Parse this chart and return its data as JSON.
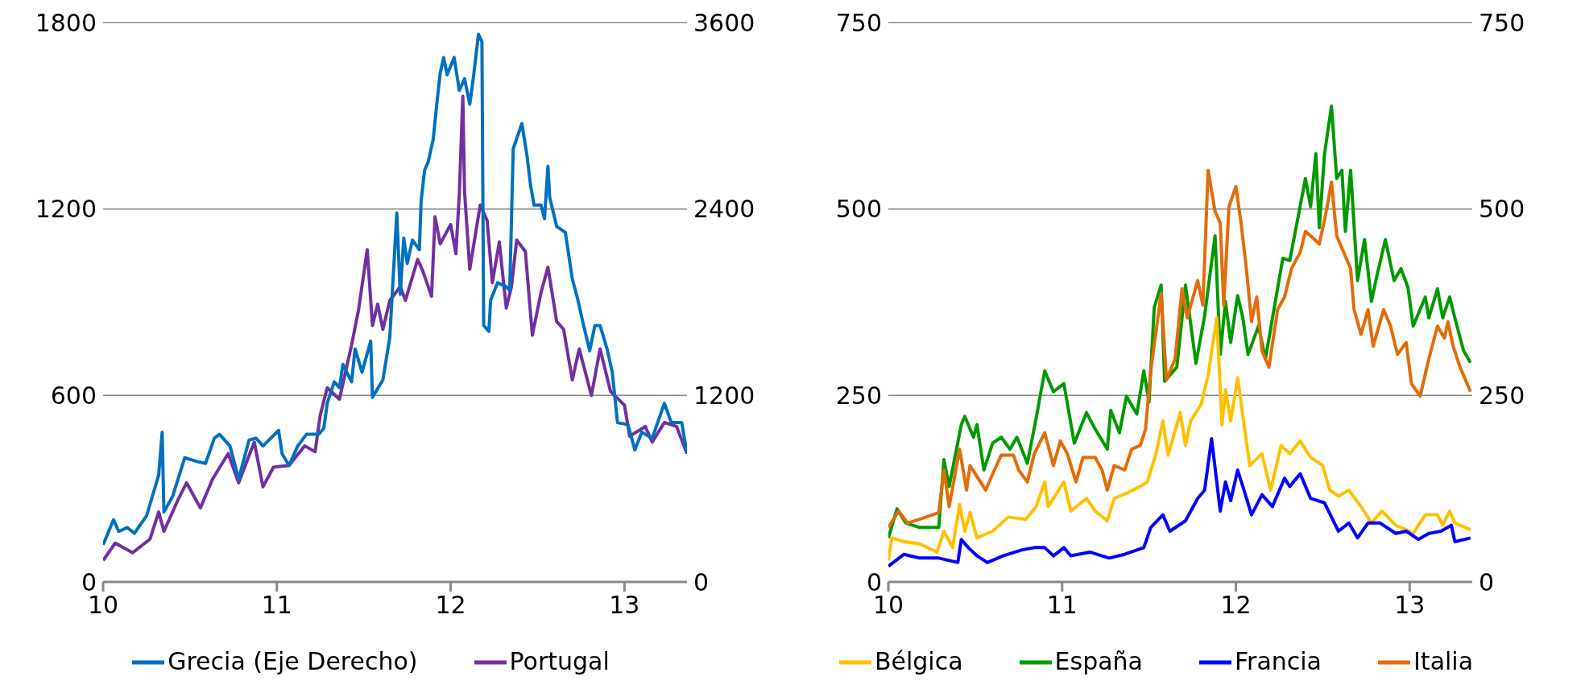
{
  "chart_data": [
    {
      "type": "line",
      "xlim": [
        10,
        13.36
      ],
      "xticks": [
        10,
        11,
        12,
        13
      ],
      "ylim": [
        0,
        1800
      ],
      "yticks": [
        0,
        600,
        1200,
        1800
      ],
      "y2lim": [
        0,
        3600
      ],
      "y2ticks": [
        0,
        1200,
        2400,
        3600
      ],
      "grid": "y",
      "legend": "bottom",
      "series": [
        {
          "name": "Portugal",
          "color": "#7030a0",
          "x": [
            10.0,
            10.07,
            10.17,
            10.27,
            10.32,
            10.35,
            10.43,
            10.48,
            10.56,
            10.63,
            10.72,
            10.78,
            10.87,
            10.92,
            10.98,
            11.07,
            11.16,
            11.22,
            11.25,
            11.29,
            11.36,
            11.43,
            11.47,
            11.52,
            11.55,
            11.58,
            11.61,
            11.65,
            11.71,
            11.74,
            11.81,
            11.84,
            11.89,
            11.91,
            11.94,
            12.0,
            12.03,
            12.05,
            12.07,
            12.08,
            12.11,
            12.17,
            12.21,
            12.24,
            12.28,
            12.32,
            12.35,
            12.38,
            12.43,
            12.47,
            12.52,
            12.56,
            12.61,
            12.65,
            12.7,
            12.74,
            12.81,
            12.86,
            12.92,
            13.0,
            13.03,
            13.12,
            13.16,
            13.23,
            13.3,
            13.36
          ],
          "values": [
            69,
            125,
            94,
            138,
            225,
            163,
            263,
            319,
            238,
            331,
            413,
            319,
            450,
            306,
            369,
            375,
            438,
            419,
            538,
            625,
            588,
            763,
            875,
            1069,
            825,
            894,
            813,
            906,
            950,
            906,
            1038,
            1000,
            919,
            1175,
            1088,
            1150,
            1056,
            1250,
            1563,
            1256,
            1006,
            1213,
            1163,
            963,
            1094,
            881,
            950,
            1100,
            1063,
            794,
            931,
            1013,
            838,
            813,
            650,
            750,
            600,
            750,
            613,
            569,
            469,
            500,
            450,
            513,
            500,
            413
          ]
        },
        {
          "name": "Grecia (Eje Derecho)",
          "color": "#0070c0",
          "axis": "y2",
          "x": [
            10.0,
            10.06,
            10.09,
            10.14,
            10.18,
            10.25,
            10.29,
            10.32,
            10.34,
            10.35,
            10.4,
            10.47,
            10.54,
            10.59,
            10.64,
            10.67,
            10.73,
            10.78,
            10.84,
            10.88,
            10.92,
            11.01,
            11.03,
            11.07,
            11.12,
            11.17,
            11.24,
            11.27,
            11.29,
            11.33,
            11.36,
            11.38,
            11.43,
            11.45,
            11.49,
            11.54,
            11.55,
            11.61,
            11.65,
            11.69,
            11.71,
            11.73,
            11.75,
            11.78,
            11.82,
            11.83,
            11.85,
            11.87,
            11.9,
            11.92,
            11.94,
            11.96,
            11.98,
            12.02,
            12.05,
            12.08,
            12.11,
            12.13,
            12.16,
            12.18,
            12.19,
            12.22,
            12.23,
            12.27,
            12.32,
            12.34,
            12.36,
            12.41,
            12.44,
            12.46,
            12.48,
            12.52,
            12.54,
            12.56,
            12.57,
            12.61,
            12.66,
            12.7,
            12.73,
            12.76,
            12.8,
            12.83,
            12.86,
            12.9,
            12.93,
            12.96,
            13.02,
            13.06,
            13.1,
            13.16,
            13.23,
            13.27,
            13.33,
            13.36
          ],
          "values": [
            238,
            400,
            325,
            350,
            313,
            425,
            575,
            688,
            963,
            450,
            550,
            800,
            775,
            763,
            925,
            950,
            875,
            663,
            913,
            925,
            875,
            975,
            825,
            750,
            875,
            950,
            950,
            988,
            1150,
            1288,
            1250,
            1400,
            1288,
            1500,
            1350,
            1550,
            1188,
            1300,
            1575,
            2375,
            1850,
            2213,
            2050,
            2200,
            2138,
            2450,
            2650,
            2700,
            2850,
            3075,
            3275,
            3375,
            3263,
            3375,
            3163,
            3238,
            3075,
            3238,
            3525,
            3475,
            1650,
            1613,
            1813,
            1925,
            1900,
            1875,
            2788,
            2950,
            2738,
            2550,
            2425,
            2425,
            2338,
            2675,
            2475,
            2288,
            2250,
            1950,
            1825,
            1675,
            1488,
            1650,
            1650,
            1500,
            1350,
            1025,
            1013,
            850,
            963,
            925,
            1150,
            1025,
            1025,
            825
          ]
        }
      ]
    },
    {
      "type": "line",
      "xlim": [
        10,
        13.36
      ],
      "xticks": [
        10,
        11,
        12,
        13
      ],
      "ylim": [
        0,
        750
      ],
      "yticks": [
        0,
        250,
        500,
        750
      ],
      "y2lim": [
        0,
        750
      ],
      "y2ticks": [
        0,
        250,
        500,
        750
      ],
      "grid": "y",
      "legend": "bottom",
      "series": [
        {
          "name": "España",
          "color": "#009900",
          "x": [
            10.0,
            10.05,
            10.1,
            10.18,
            10.29,
            10.32,
            10.35,
            10.42,
            10.44,
            10.49,
            10.51,
            10.55,
            10.6,
            10.65,
            10.7,
            10.74,
            10.8,
            10.85,
            10.9,
            10.95,
            11.01,
            11.07,
            11.14,
            11.19,
            11.26,
            11.28,
            11.33,
            11.37,
            11.43,
            11.47,
            11.5,
            11.53,
            11.57,
            11.59,
            11.66,
            11.71,
            11.77,
            11.82,
            11.88,
            11.91,
            11.94,
            11.97,
            12.01,
            12.04,
            12.07,
            12.13,
            12.17,
            12.27,
            12.31,
            12.36,
            12.4,
            12.43,
            12.46,
            12.48,
            12.51,
            12.55,
            12.58,
            12.61,
            12.63,
            12.66,
            12.7,
            12.74,
            12.78,
            12.81,
            12.86,
            12.91,
            12.95,
            12.99,
            13.02,
            13.09,
            13.11,
            13.16,
            13.19,
            13.23,
            13.26,
            13.31,
            13.35
          ],
          "values": [
            59,
            98,
            79,
            73,
            73,
            164,
            128,
            211,
            222,
            194,
            211,
            150,
            186,
            194,
            178,
            194,
            159,
            219,
            283,
            255,
            266,
            186,
            227,
            205,
            178,
            230,
            200,
            249,
            225,
            283,
            241,
            368,
            398,
            269,
            288,
            398,
            293,
            357,
            464,
            305,
            376,
            321,
            384,
            354,
            305,
            343,
            299,
            434,
            431,
            492,
            541,
            503,
            574,
            475,
            574,
            638,
            541,
            552,
            470,
            552,
            404,
            459,
            376,
            409,
            459,
            404,
            420,
            395,
            343,
            382,
            354,
            393,
            354,
            382,
            354,
            310,
            294
          ]
        },
        {
          "name": "Italia",
          "color": "#e36c0a",
          "x": [
            10.0,
            10.06,
            10.11,
            10.18,
            10.29,
            10.32,
            10.35,
            10.41,
            10.45,
            10.47,
            10.53,
            10.56,
            10.61,
            10.65,
            10.72,
            10.75,
            10.8,
            10.84,
            10.9,
            10.95,
            10.99,
            11.03,
            11.08,
            11.12,
            11.19,
            11.23,
            11.26,
            11.3,
            11.36,
            11.4,
            11.45,
            11.48,
            11.51,
            11.57,
            11.6,
            11.65,
            11.69,
            11.72,
            11.78,
            11.81,
            11.84,
            11.88,
            11.91,
            11.93,
            11.96,
            12.0,
            12.03,
            12.06,
            12.09,
            12.12,
            12.15,
            12.19,
            12.24,
            12.28,
            12.32,
            12.37,
            12.4,
            12.43,
            12.48,
            12.52,
            12.55,
            12.58,
            12.62,
            12.66,
            12.68,
            12.72,
            12.76,
            12.79,
            12.85,
            12.89,
            12.93,
            12.98,
            13.01,
            13.06,
            13.11,
            13.16,
            13.2,
            13.22,
            13.25,
            13.29,
            13.35
          ],
          "values": [
            73,
            95,
            79,
            84,
            93,
            150,
            101,
            178,
            123,
            156,
            134,
            123,
            150,
            170,
            170,
            150,
            134,
            172,
            200,
            156,
            189,
            172,
            134,
            167,
            167,
            150,
            123,
            156,
            150,
            178,
            183,
            205,
            283,
            387,
            271,
            299,
            393,
            354,
            404,
            371,
            552,
            497,
            481,
            371,
            503,
            530,
            481,
            420,
            349,
            382,
            310,
            288,
            365,
            382,
            420,
            442,
            470,
            464,
            453,
            497,
            536,
            464,
            442,
            420,
            365,
            332,
            365,
            316,
            365,
            343,
            305,
            321,
            266,
            249,
            299,
            343,
            327,
            349,
            316,
            288,
            255
          ]
        },
        {
          "name": "Bélgica",
          "color": "#ffc000",
          "x": [
            10.0,
            10.02,
            10.09,
            10.18,
            10.28,
            10.32,
            10.37,
            10.41,
            10.44,
            10.47,
            10.51,
            10.6,
            10.69,
            10.79,
            10.85,
            10.9,
            10.92,
            11.01,
            11.05,
            11.14,
            11.19,
            11.26,
            11.3,
            11.38,
            11.45,
            11.49,
            11.54,
            11.58,
            11.61,
            11.68,
            11.71,
            11.74,
            11.8,
            11.84,
            11.89,
            11.92,
            11.94,
            11.97,
            12.01,
            12.04,
            12.08,
            12.15,
            12.2,
            12.26,
            12.31,
            12.37,
            12.43,
            12.5,
            12.54,
            12.59,
            12.65,
            12.72,
            12.78,
            12.84,
            12.92,
            12.98,
            13.02,
            13.09,
            13.16,
            13.19,
            13.23,
            13.26,
            13.35
          ],
          "values": [
            29,
            59,
            54,
            51,
            40,
            68,
            46,
            104,
            68,
            93,
            59,
            68,
            87,
            84,
            101,
            134,
            101,
            134,
            95,
            112,
            95,
            82,
            112,
            120,
            128,
            134,
            172,
            216,
            170,
            227,
            183,
            216,
            238,
            277,
            354,
            211,
            258,
            216,
            274,
            222,
            156,
            172,
            123,
            183,
            172,
            189,
            167,
            156,
            123,
            115,
            123,
            101,
            79,
            95,
            76,
            70,
            65,
            90,
            90,
            76,
            95,
            79,
            70
          ]
        },
        {
          "name": "Francia",
          "color": "#0000ff",
          "x": [
            10.0,
            10.09,
            10.18,
            10.29,
            10.4,
            10.42,
            10.46,
            10.51,
            10.57,
            10.66,
            10.77,
            10.84,
            10.9,
            10.95,
            11.01,
            11.05,
            11.16,
            11.27,
            11.36,
            11.47,
            11.51,
            11.58,
            11.62,
            11.71,
            11.78,
            11.82,
            11.86,
            11.91,
            11.94,
            11.97,
            12.01,
            12.04,
            12.09,
            12.15,
            12.21,
            12.28,
            12.31,
            12.37,
            12.43,
            12.51,
            12.59,
            12.65,
            12.7,
            12.76,
            12.83,
            12.92,
            12.98,
            13.05,
            13.11,
            13.18,
            13.24,
            13.26,
            13.35
          ],
          "values": [
            21,
            37,
            32,
            32,
            26,
            57,
            46,
            35,
            26,
            35,
            43,
            46,
            46,
            35,
            46,
            35,
            40,
            32,
            37,
            46,
            73,
            90,
            68,
            82,
            112,
            123,
            192,
            95,
            134,
            109,
            150,
            128,
            90,
            117,
            101,
            139,
            128,
            145,
            112,
            106,
            68,
            79,
            59,
            79,
            79,
            65,
            68,
            57,
            65,
            68,
            76,
            54,
            59
          ]
        }
      ]
    }
  ]
}
